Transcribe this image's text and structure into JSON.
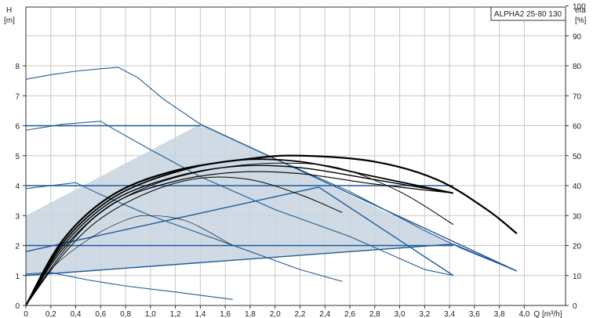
{
  "chart_data": {
    "type": "line",
    "title": "ALPHA2 25-80 130",
    "xlabel": "Q [m³/h]",
    "x_tick_suffix": "Q [m³/h]",
    "ylabel_left": "H",
    "ylabel_left_unit": "[m]",
    "ylabel_right": "eta",
    "ylabel_right_unit": "[%]",
    "xlim": [
      0,
      4.3
    ],
    "ylim_left": [
      0,
      10
    ],
    "ylim_right": [
      0,
      100
    ],
    "x_ticks": [
      "0",
      "0,2",
      "0,4",
      "0,6",
      "0,8",
      "1,0",
      "1,2",
      "1,4",
      "1,6",
      "1,8",
      "2,0",
      "2,2",
      "2,4",
      "2,6",
      "2,8",
      "3,0",
      "3,2",
      "3,4",
      "3,6",
      "3,8",
      "4,0"
    ],
    "x_tick_values": [
      0,
      0.2,
      0.4,
      0.6,
      0.8,
      1.0,
      1.2,
      1.4,
      1.6,
      1.8,
      2.0,
      2.2,
      2.4,
      2.6,
      2.8,
      3.0,
      3.2,
      3.4,
      3.6,
      3.8,
      4.0
    ],
    "y_left_ticks": [
      "0",
      "1",
      "2",
      "3",
      "4",
      "5",
      "6",
      "7",
      "8"
    ],
    "y_left_tick_values": [
      0,
      1,
      2,
      3,
      4,
      5,
      6,
      7,
      8
    ],
    "y_right_ticks": [
      "0",
      "10",
      "20",
      "30",
      "40",
      "50",
      "60",
      "70",
      "80",
      "90",
      "100"
    ],
    "y_right_tick_values": [
      0,
      10,
      20,
      30,
      40,
      50,
      60,
      70,
      80,
      90,
      100
    ],
    "grid": true,
    "colors": {
      "head": "#1f5a96",
      "fill": "#c7d3e1",
      "efficiency": "#000000"
    },
    "operating_area": [
      [
        0,
        1
      ],
      [
        0,
        3
      ],
      [
        1.4,
        6.05
      ],
      [
        3.43,
        2.05
      ],
      [
        0,
        1
      ]
    ],
    "head_curves": [
      {
        "x": [
          0,
          0.2,
          0.4,
          0.6,
          0.74,
          0.9,
          1.1,
          1.4,
          2.0,
          2.6,
          3.2,
          3.5,
          3.94
        ],
        "y": [
          7.55,
          7.7,
          7.82,
          7.9,
          7.95,
          7.6,
          6.9,
          6.05,
          4.9,
          3.8,
          2.5,
          1.9,
          1.15
        ]
      },
      {
        "x": [
          0,
          0.3,
          0.6,
          0.7,
          1.0,
          1.4,
          2.0,
          2.6,
          3.2,
          3.43
        ],
        "y": [
          5.85,
          6.05,
          6.15,
          5.9,
          5.2,
          4.3,
          3.2,
          2.3,
          1.2,
          1.0
        ]
      },
      {
        "x": [
          0,
          0.2,
          0.4,
          0.6,
          1.0,
          1.6,
          2.2,
          2.54
        ],
        "y": [
          3.9,
          4.0,
          4.1,
          3.7,
          3.0,
          2.1,
          1.2,
          0.8
        ]
      },
      {
        "x": [
          0,
          0.2,
          0.5,
          0.8,
          1.2,
          1.66
        ],
        "y": [
          1.05,
          1.1,
          0.85,
          0.65,
          0.45,
          0.2
        ]
      },
      {
        "x": [
          0,
          1.4
        ],
        "y": [
          6.0,
          6.0
        ]
      },
      {
        "x": [
          1.4,
          3.94
        ],
        "y": [
          6.05,
          1.15
        ]
      },
      {
        "x": [
          0,
          3.43
        ],
        "y": [
          4.0,
          4.0
        ]
      },
      {
        "x": [
          0,
          3.43
        ],
        "y": [
          2.0,
          2.0
        ]
      },
      {
        "x": [
          0,
          2.35
        ],
        "y": [
          1.8,
          3.95
        ]
      },
      {
        "x": [
          0,
          3.43
        ],
        "y": [
          1.0,
          2.05
        ]
      },
      {
        "x": [
          3.43,
          3.94
        ],
        "y": [
          2.05,
          1.15
        ]
      },
      {
        "x": [
          2.35,
          3.43
        ],
        "y": [
          3.95,
          1.0
        ]
      }
    ],
    "efficiency_curves": [
      {
        "x": [
          0,
          0.3,
          0.7,
          1.2,
          1.8,
          2.2,
          2.8,
          3.3,
          3.7,
          3.94
        ],
        "y": [
          0,
          22,
          37,
          45,
          49,
          50,
          48,
          42,
          32,
          24
        ],
        "width": 2.2
      },
      {
        "x": [
          0,
          0.3,
          0.7,
          1.2,
          1.7,
          2.2,
          2.8,
          3.43
        ],
        "y": [
          0,
          21,
          36,
          44.5,
          48.5,
          48,
          43,
          37.5
        ],
        "width": 1.8
      },
      {
        "x": [
          0,
          0.3,
          0.7,
          1.2,
          1.7,
          2.2,
          2.8,
          3.43
        ],
        "y": [
          0,
          20,
          35,
          43,
          46.5,
          46,
          42,
          37.5
        ],
        "width": 1.4
      },
      {
        "x": [
          0,
          0.3,
          0.7,
          1.2,
          1.7,
          2.2,
          2.8,
          3.43
        ],
        "y": [
          0,
          19,
          34,
          41.5,
          44.5,
          44,
          40.5,
          37.5
        ],
        "width": 1.2
      },
      {
        "x": [
          0,
          0.3,
          0.6,
          1.0,
          1.5,
          2.0,
          2.5,
          3.0,
          3.43
        ],
        "y": [
          0,
          18,
          31,
          40,
          45.5,
          47.5,
          46,
          38,
          27
        ],
        "width": 1
      },
      {
        "x": [
          0,
          0.3,
          0.6,
          1.0,
          1.4,
          1.8,
          2.2,
          2.54
        ],
        "y": [
          0,
          17,
          29,
          38,
          42.5,
          42,
          37,
          31
        ],
        "width": 1
      },
      {
        "x": [
          0,
          0.2,
          0.5,
          0.8,
          1.0,
          1.3,
          1.66
        ],
        "y": [
          0,
          12,
          22,
          28.5,
          30,
          28,
          20
        ],
        "width": 0.6
      }
    ]
  }
}
